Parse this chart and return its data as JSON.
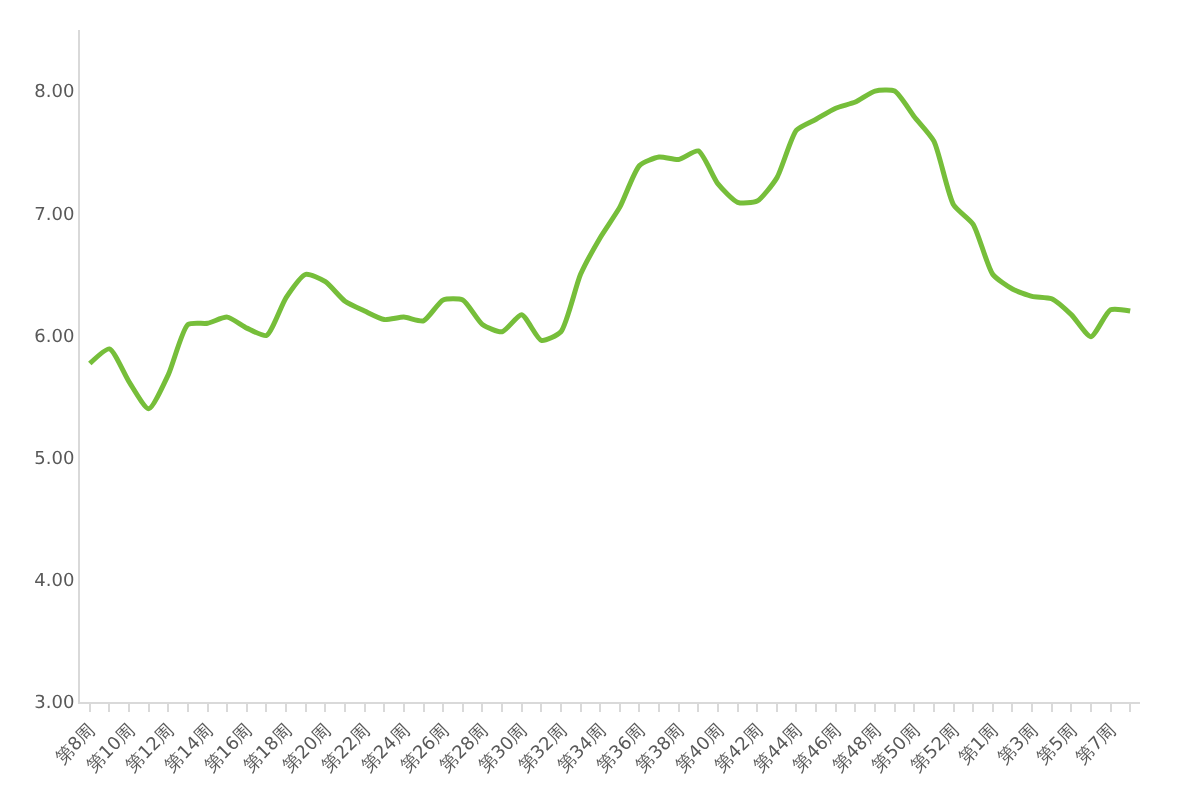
{
  "chart_data": {
    "type": "line",
    "categories": [
      "第8周",
      null,
      "第10周",
      null,
      "第12周",
      null,
      "第14周",
      null,
      "第16周",
      null,
      "第18周",
      null,
      "第20周",
      null,
      "第22周",
      null,
      "第24周",
      null,
      "第26周",
      null,
      "第28周",
      null,
      "第30周",
      null,
      "第32周",
      null,
      "第34周",
      null,
      "第36周",
      null,
      "第38周",
      null,
      "第40周",
      null,
      "第42周",
      null,
      "第44周",
      null,
      "第46周",
      null,
      "第48周",
      null,
      "第50周",
      null,
      "第52周",
      null,
      "第1周",
      null,
      "第3周",
      null,
      "第5周",
      null,
      "第7周",
      null
    ],
    "series": [
      {
        "color": "#76be3a",
        "values": [
          5.77,
          5.89,
          5.62,
          5.4,
          5.68,
          6.09,
          6.1,
          6.15,
          6.06,
          6.0,
          6.31,
          6.5,
          6.44,
          6.28,
          6.2,
          6.13,
          6.15,
          6.12,
          6.29,
          6.29,
          6.09,
          6.03,
          6.17,
          5.96,
          6.03,
          6.5,
          6.8,
          7.05,
          7.39,
          7.46,
          7.44,
          7.51,
          7.24,
          7.09,
          7.1,
          7.29,
          7.68,
          7.77,
          7.86,
          7.91,
          8.0,
          8.0,
          7.79,
          7.59,
          7.07,
          6.91,
          6.5,
          6.38,
          6.32,
          6.3,
          6.17,
          5.99,
          6.21,
          6.2
        ]
      }
    ],
    "ylim": [
      3,
      8.5
    ],
    "yticks": [
      {
        "value": 3,
        "label": "3.00"
      },
      {
        "value": 4,
        "label": "4.00"
      },
      {
        "value": 5,
        "label": "5.00"
      },
      {
        "value": 6,
        "label": "6.00"
      },
      {
        "value": 7,
        "label": "7.00"
      },
      {
        "value": 8,
        "label": "8.00"
      }
    ],
    "legend": false,
    "marker": "none",
    "line_style": "solid"
  }
}
